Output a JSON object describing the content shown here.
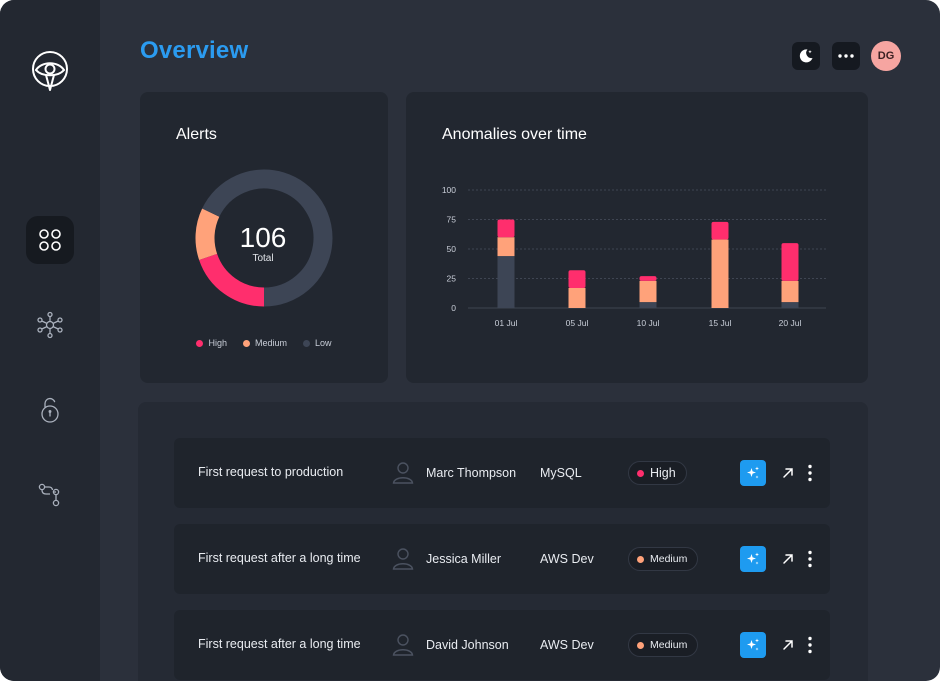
{
  "header": {
    "title": "Overview",
    "theme_toggle_icon": "moon-icon",
    "more_icon": "more-horizontal-icon",
    "avatar_initials": "DG"
  },
  "sidebar": {
    "logo_icon": "eye-shield-logo",
    "items": [
      {
        "icon": "grid-circles-icon",
        "active": true
      },
      {
        "icon": "network-hub-icon",
        "active": false
      },
      {
        "icon": "unlock-icon",
        "active": false
      },
      {
        "icon": "git-branch-icon",
        "active": false
      }
    ]
  },
  "alerts_card": {
    "title": "Alerts",
    "total_value": "106",
    "total_label": "Total",
    "chart_data": {
      "type": "pie",
      "donut": true,
      "slices": [
        {
          "name": "High",
          "value": 21,
          "color": "#ff2e6d"
        },
        {
          "name": "Medium",
          "value": 13,
          "color": "#ffa27a"
        },
        {
          "name": "Low",
          "value": 72,
          "color": "#3d4555"
        }
      ],
      "legend": "bottom"
    }
  },
  "anomalies_card": {
    "title": "Anomalies over time",
    "chart_data": {
      "type": "bar",
      "stacked": true,
      "categories": [
        "01 Jul",
        "05 Jul",
        "10 Jul",
        "15 Jul",
        "20 Jul"
      ],
      "series": [
        {
          "color": "#3d4555",
          "values": [
            44,
            0,
            5,
            0,
            5
          ]
        },
        {
          "color": "#ffa27a",
          "values": [
            16,
            17,
            18,
            58,
            18
          ]
        },
        {
          "color": "#ff2e6d",
          "values": [
            15,
            15,
            4,
            15,
            32
          ]
        }
      ],
      "yticks": [
        0,
        25,
        50,
        75,
        100
      ],
      "ylim": [
        0,
        100
      ],
      "grid": true
    }
  },
  "alerts_list": [
    {
      "title": "First request to production",
      "user": "Marc Thompson",
      "resource": "MySQL",
      "severity": "High",
      "severity_color": "#ff2e6d"
    },
    {
      "title": "First request after a long time",
      "user": "Jessica Miller",
      "resource": "AWS Dev",
      "severity": "Medium",
      "severity_color": "#ffa27a"
    },
    {
      "title": "First request after a long time",
      "user": "David Johnson",
      "resource": "AWS Dev",
      "severity": "Medium",
      "severity_color": "#ffa27a"
    }
  ]
}
